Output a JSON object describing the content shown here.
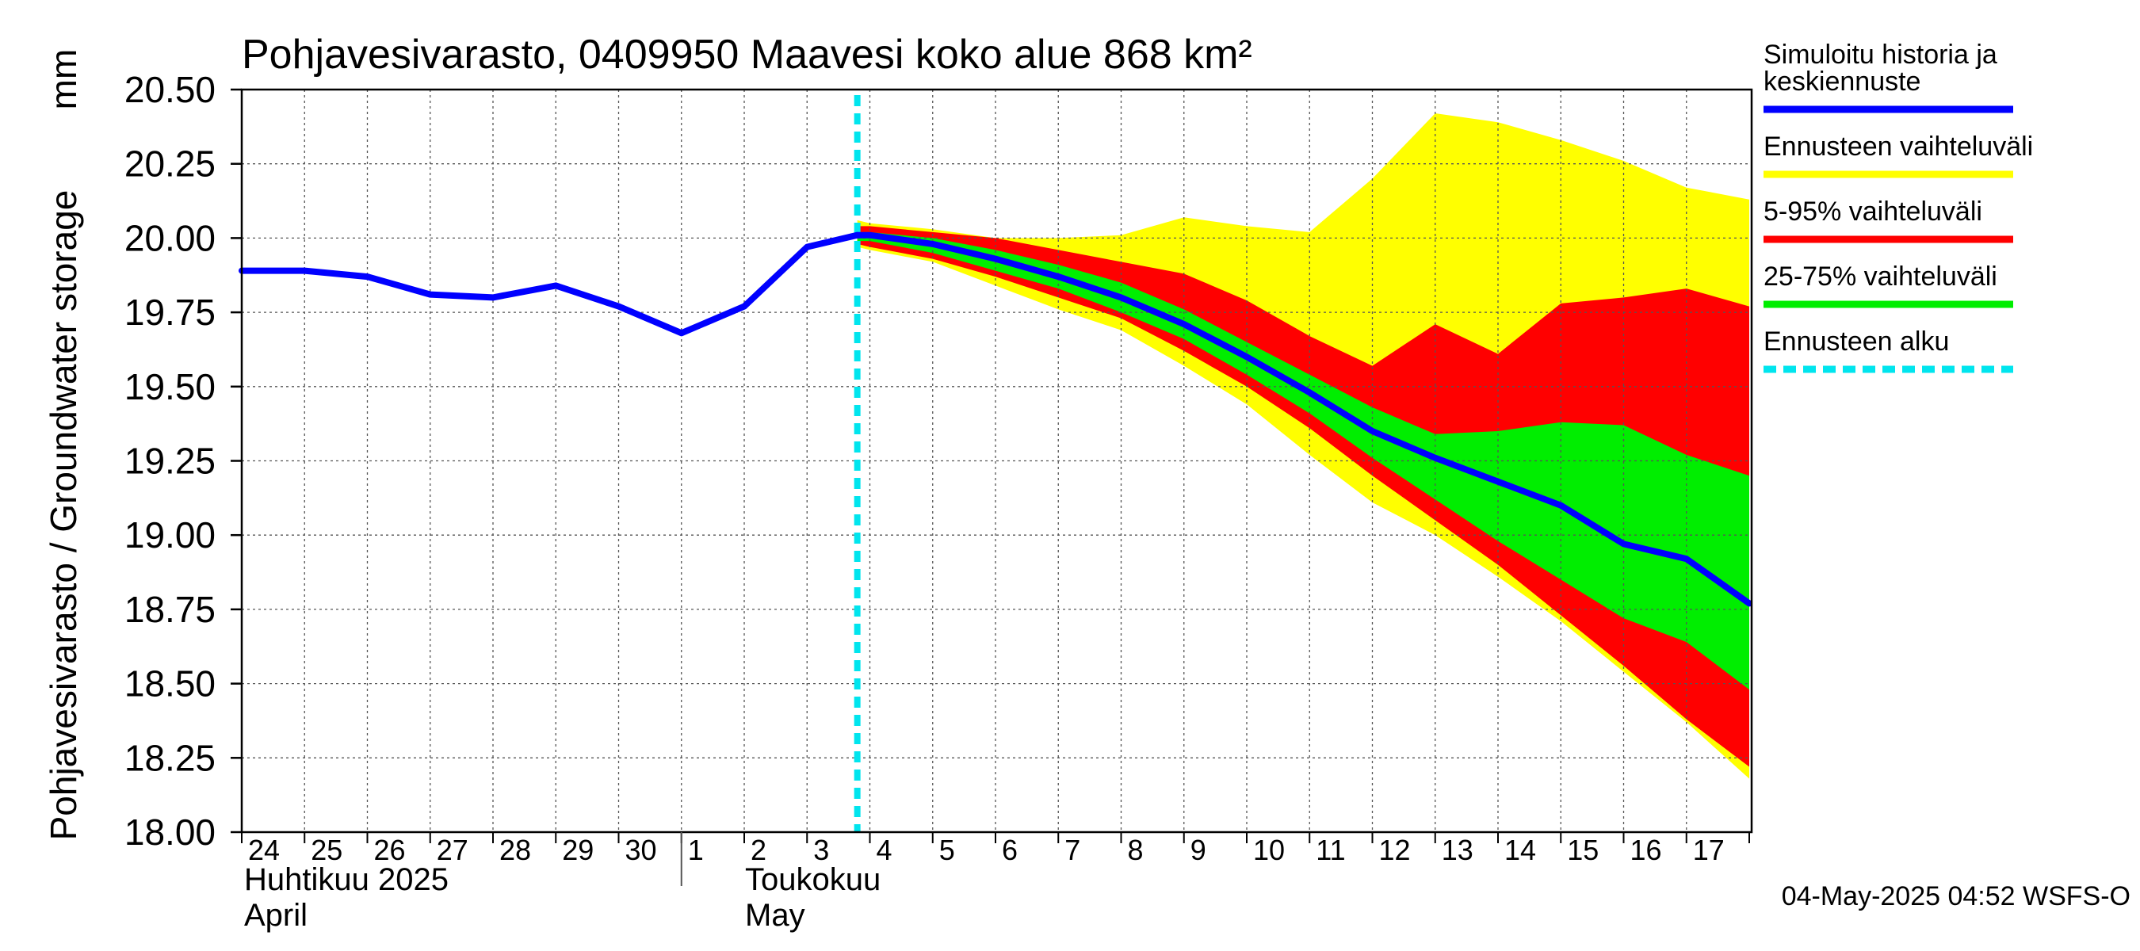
{
  "chart_data": {
    "type": "area",
    "title": "Pohjavesivarasto, 0409950 Maavesi koko alue 868 km²",
    "ylabel": "Pohjavesivarasto / Groundwater storage",
    "yunit": "mm",
    "ylim": [
      18.0,
      20.5
    ],
    "yticks": [
      "18.00",
      "18.25",
      "18.50",
      "18.75",
      "19.00",
      "19.25",
      "19.50",
      "19.75",
      "20.00",
      "20.25",
      "20.50"
    ],
    "x_day_labels": [
      "24",
      "25",
      "26",
      "27",
      "28",
      "29",
      "30",
      "1",
      "2",
      "3",
      "4",
      "5",
      "6",
      "7",
      "8",
      "9",
      "10",
      "11",
      "12",
      "13",
      "14",
      "15",
      "16",
      "17"
    ],
    "month_labels": {
      "april_fi": "Huhtikuu  2025",
      "april_en": "April",
      "may_fi": "Toukokuu",
      "may_en": "May"
    },
    "forecast_start_x": 9.8,
    "history": {
      "x": [
        0,
        1,
        2,
        3,
        4,
        5,
        6,
        7,
        8,
        9,
        9.8
      ],
      "y": [
        19.89,
        19.89,
        19.87,
        19.81,
        19.8,
        19.84,
        19.77,
        19.68,
        19.77,
        19.97,
        20.01
      ]
    },
    "forecast": {
      "x": [
        9.8,
        10,
        11,
        12,
        13,
        14,
        15,
        16,
        17,
        18,
        19,
        20,
        21,
        22,
        23,
        24
      ],
      "median": [
        20.01,
        20.01,
        19.98,
        19.93,
        19.87,
        19.8,
        19.71,
        19.6,
        19.48,
        19.35,
        19.26,
        19.18,
        19.1,
        18.97,
        18.92,
        18.77
      ],
      "p25": [
        19.99,
        19.99,
        19.95,
        19.89,
        19.83,
        19.75,
        19.66,
        19.54,
        19.41,
        19.26,
        19.12,
        18.98,
        18.85,
        18.72,
        18.64,
        18.48
      ],
      "p75": [
        20.02,
        20.02,
        20.0,
        19.96,
        19.91,
        19.85,
        19.76,
        19.65,
        19.54,
        19.43,
        19.34,
        19.35,
        19.38,
        19.37,
        19.27,
        19.2
      ],
      "p5": [
        19.98,
        19.97,
        19.93,
        19.87,
        19.8,
        19.73,
        19.62,
        19.5,
        19.36,
        19.2,
        19.05,
        18.9,
        18.73,
        18.56,
        18.38,
        18.22
      ],
      "p95": [
        20.04,
        20.04,
        20.02,
        20.0,
        19.96,
        19.92,
        19.88,
        19.79,
        19.67,
        19.57,
        19.71,
        19.61,
        19.78,
        19.8,
        19.83,
        19.77
      ],
      "min": [
        19.97,
        19.96,
        19.92,
        19.84,
        19.76,
        19.69,
        19.57,
        19.44,
        19.27,
        19.11,
        19.0,
        18.86,
        18.71,
        18.54,
        18.37,
        18.18
      ],
      "max": [
        20.06,
        20.05,
        20.03,
        20.0,
        20.0,
        20.01,
        20.07,
        20.04,
        20.02,
        20.2,
        20.42,
        20.39,
        20.33,
        20.26,
        20.17,
        20.13
      ]
    },
    "legend": {
      "position": "right",
      "items": [
        {
          "label_line1": "Simuloitu historia ja",
          "label_line2": "keskiennuste",
          "color": "#0000ff",
          "style": "line"
        },
        {
          "label_line1": "Ennusteen vaihteluväli",
          "label_line2": "",
          "color": "#ffff00",
          "style": "line"
        },
        {
          "label_line1": "5-95% vaihteluväli",
          "label_line2": "",
          "color": "#ff0000",
          "style": "line"
        },
        {
          "label_line1": "25-75% vaihteluväli",
          "label_line2": "",
          "color": "#00ee00",
          "style": "line"
        },
        {
          "label_line1": "Ennusteen alku",
          "label_line2": "",
          "color": "#00e5ee",
          "style": "dashed"
        }
      ]
    },
    "footer": "04-May-2025 04:52 WSFS-O",
    "colors": {
      "history": "#0000ff",
      "range": "#ffff00",
      "p5_95": "#ff0000",
      "p25_75": "#00ee00",
      "forecast_start": "#00e5ee",
      "grid": "#000000"
    }
  }
}
